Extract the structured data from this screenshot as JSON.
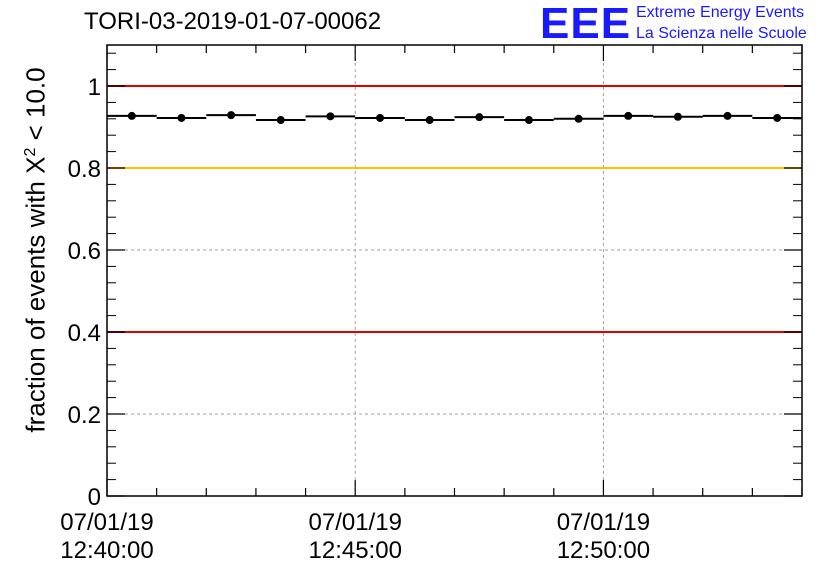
{
  "title": "TORI-03-2019-01-07-00062",
  "logo": {
    "mark": "EEE",
    "line1": "Extreme Energy Events",
    "line2": "La Scienza nelle Scuole"
  },
  "chart_data": {
    "type": "scatter",
    "title": "TORI-03-2019-01-07-00062",
    "xlabel": "",
    "ylabel_prefix": "fraction of events with X",
    "ylabel_sup": "2",
    "ylabel_suffix": " < 10.0",
    "ylim": [
      0,
      1.1
    ],
    "yticks": [
      0,
      0.2,
      0.4,
      0.6,
      0.8,
      1
    ],
    "ytick_labels": [
      "0",
      "0.2",
      "0.4",
      "0.6",
      "0.8",
      "1"
    ],
    "xlim_minutes": [
      0,
      14
    ],
    "xticks_minutes": [
      5,
      10
    ],
    "xtick_labels": [
      {
        "minute": 0,
        "date": "07/01/19",
        "time": "12:40:00"
      },
      {
        "minute": 5,
        "date": "07/01/19",
        "time": "12:45:00"
      },
      {
        "minute": 10,
        "date": "07/01/19",
        "time": "12:50:00"
      }
    ],
    "grid": true,
    "points_x_minutes": [
      0.5,
      1.5,
      2.5,
      3.5,
      4.5,
      5.5,
      6.5,
      7.5,
      8.5,
      9.5,
      10.5,
      11.5,
      12.5,
      13.5
    ],
    "points_y": [
      0.927,
      0.922,
      0.929,
      0.917,
      0.926,
      0.922,
      0.917,
      0.924,
      0.917,
      0.92,
      0.927,
      0.925,
      0.927,
      0.922
    ],
    "reference_lines": [
      {
        "y": 1.0,
        "color": "#e00000"
      },
      {
        "y": 0.8,
        "color": "#ffc000"
      },
      {
        "y": 0.4,
        "color": "#e00000"
      }
    ]
  }
}
